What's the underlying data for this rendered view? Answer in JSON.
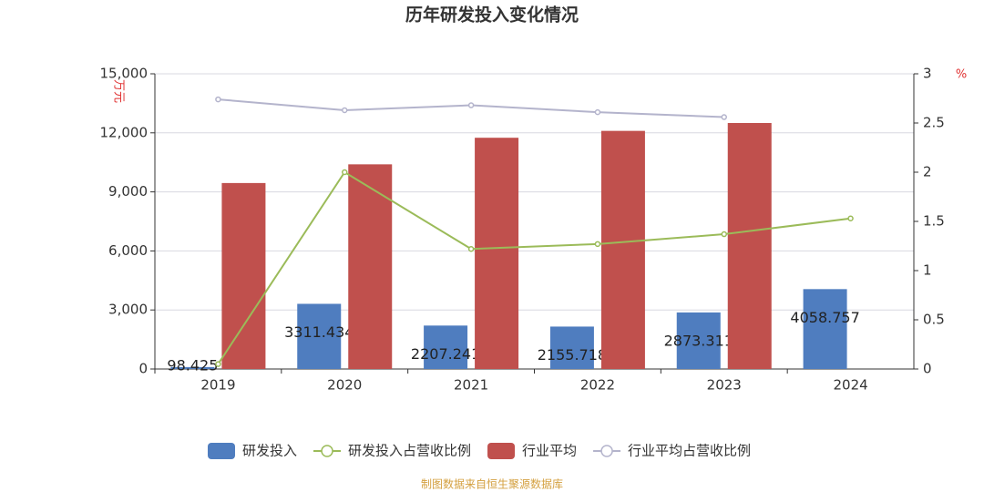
{
  "chart_data": {
    "type": "bar-line",
    "title": "历年研发投入变化情况",
    "y_label": "万元",
    "y2_label": "%",
    "source": "制图数据来自恒生聚源数据库",
    "categories": [
      "2019",
      "2020",
      "2021",
      "2022",
      "2023",
      "2024"
    ],
    "series": [
      {
        "name": "研发投入",
        "type": "bar",
        "color": "#4f7dbf",
        "values": [
          98.425,
          3311.434,
          2207.241,
          2155.718,
          2873.311,
          4058.757
        ],
        "show_labels": true
      },
      {
        "name": "研发投入占营收比例",
        "type": "line",
        "axis": "y2",
        "color": "#9bbb59",
        "values": [
          0.05,
          2.0,
          1.22,
          1.27,
          1.37,
          1.53
        ]
      },
      {
        "name": "行业平均",
        "type": "bar",
        "color": "#c0504d",
        "values": [
          9450,
          10400,
          11750,
          12100,
          12500,
          null
        ]
      },
      {
        "name": "行业平均占营收比例",
        "type": "line",
        "axis": "y2",
        "color": "#b4b4cc",
        "values": [
          2.74,
          2.63,
          2.68,
          2.61,
          2.56,
          null
        ]
      }
    ],
    "ylim": [
      0,
      15000
    ],
    "yticks": [
      0,
      {
        "value": 3000,
        "label": "3,000"
      },
      {
        "value": 6000,
        "label": "6,000"
      },
      {
        "value": 9000,
        "label": "9,000"
      },
      {
        "value": 12000,
        "label": "12,000"
      },
      {
        "value": 15000,
        "label": "15,000"
      }
    ],
    "y2lim": [
      0,
      3
    ],
    "y2ticks": [
      0,
      0.5,
      1,
      1.5,
      2,
      2.5,
      3
    ],
    "grid": true
  }
}
